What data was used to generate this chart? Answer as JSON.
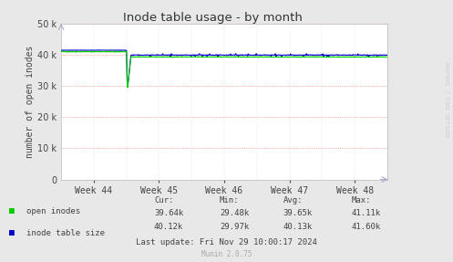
{
  "title": "Inode table usage - by month",
  "ylabel": "number of open inodes",
  "background_color": "#e8e8e8",
  "plot_bg_color": "#ffffff",
  "ylim": [
    0,
    50000
  ],
  "yticks": [
    0,
    10000,
    20000,
    30000,
    40000,
    50000
  ],
  "x_week_labels": [
    "Week 44",
    "Week 45",
    "Week 46",
    "Week 47",
    "Week 48"
  ],
  "title_color": "#333333",
  "axis_color": "#444444",
  "line1_color": "#00cc00",
  "line2_color": "#0000cc",
  "legend_items": [
    "open inodes",
    "inode table size"
  ],
  "legend_colors": [
    "#00cc00",
    "#0000cc"
  ],
  "stats_headers": [
    "Cur:",
    "Min:",
    "Avg:",
    "Max:"
  ],
  "stats_line1": [
    "39.64k",
    "29.48k",
    "39.65k",
    "41.11k"
  ],
  "stats_line2": [
    "40.12k",
    "29.97k",
    "40.13k",
    "41.60k"
  ],
  "last_update": "Last update: Fri Nov 29 10:00:17 2024",
  "munin_version": "Munin 2.0.75",
  "rrdtool_label": "RRDTOOL / TOBI OETIKER"
}
